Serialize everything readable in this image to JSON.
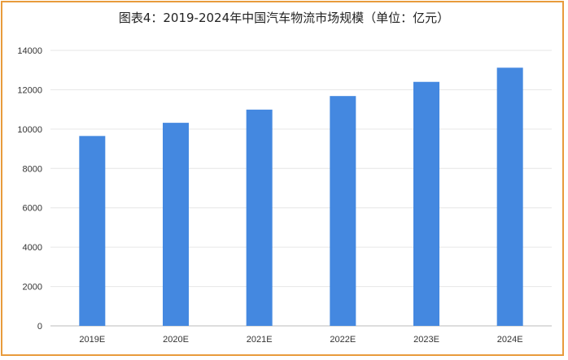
{
  "chart_data": {
    "type": "bar",
    "title": "图表4：2019-2024年中国汽车物流市场规模（单位：亿元）",
    "categories": [
      "2019E",
      "2020E",
      "2021E",
      "2022E",
      "2023E",
      "2024E"
    ],
    "values": [
      9650,
      10320,
      10990,
      11680,
      12400,
      13120
    ],
    "ylim": [
      0,
      14000
    ],
    "yticks": [
      0,
      2000,
      4000,
      6000,
      8000,
      10000,
      12000,
      14000
    ],
    "grid": true,
    "bar_color": "#4488E0",
    "frame_color": "#E89B3C"
  }
}
